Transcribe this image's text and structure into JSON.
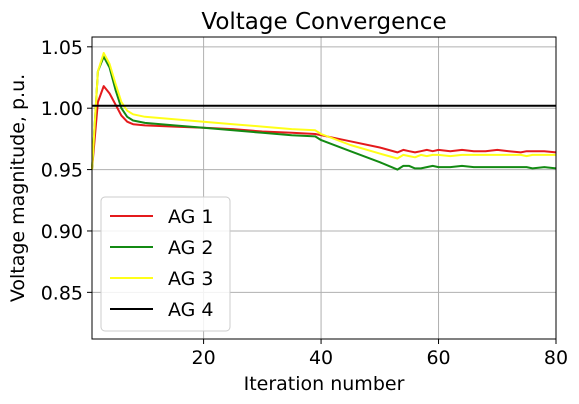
{
  "chart_data": {
    "type": "line",
    "title": "Voltage Convergence",
    "xlabel": "Iteration number",
    "ylabel": "Voltage magnitude, p.u.",
    "xlim": [
      1,
      80
    ],
    "ylim": [
      0.812,
      1.058
    ],
    "xticks": [
      20,
      40,
      60,
      80
    ],
    "yticks": [
      0.85,
      0.9,
      0.95,
      1.0,
      1.05
    ],
    "xtick_labels": [
      "20",
      "40",
      "60",
      "80"
    ],
    "ytick_labels": [
      "0.85",
      "0.90",
      "0.95",
      "1.00",
      "1.05"
    ],
    "grid": true,
    "legend_position": "lower-left",
    "series": [
      {
        "name": "AG 1",
        "color": "#e41a1c",
        "x": [
          1,
          2,
          3,
          4,
          5,
          6,
          7,
          8,
          10,
          15,
          20,
          25,
          30,
          35,
          39,
          40,
          45,
          50,
          53,
          54,
          55,
          56,
          57,
          58,
          59,
          60,
          62,
          64,
          66,
          68,
          70,
          72,
          74,
          75,
          76,
          78,
          80
        ],
        "y": [
          0.95,
          1.005,
          1.018,
          1.012,
          1.003,
          0.994,
          0.989,
          0.987,
          0.986,
          0.985,
          0.984,
          0.983,
          0.981,
          0.98,
          0.979,
          0.978,
          0.973,
          0.968,
          0.964,
          0.966,
          0.965,
          0.964,
          0.965,
          0.966,
          0.965,
          0.966,
          0.965,
          0.966,
          0.965,
          0.965,
          0.966,
          0.965,
          0.964,
          0.965,
          0.965,
          0.965,
          0.964
        ]
      },
      {
        "name": "AG 2",
        "color": "#138a13",
        "x": [
          1,
          2,
          3,
          4,
          5,
          6,
          7,
          8,
          10,
          15,
          20,
          25,
          30,
          35,
          39,
          40,
          45,
          50,
          52,
          53,
          54,
          55,
          56,
          57,
          58,
          59,
          60,
          62,
          64,
          66,
          68,
          70,
          72,
          74,
          75,
          76,
          78,
          80
        ],
        "y": [
          0.95,
          1.03,
          1.042,
          1.033,
          1.015,
          1.0,
          0.993,
          0.99,
          0.988,
          0.986,
          0.984,
          0.982,
          0.98,
          0.978,
          0.977,
          0.974,
          0.965,
          0.956,
          0.952,
          0.95,
          0.953,
          0.953,
          0.951,
          0.951,
          0.952,
          0.953,
          0.952,
          0.952,
          0.953,
          0.952,
          0.952,
          0.952,
          0.952,
          0.952,
          0.952,
          0.951,
          0.952,
          0.951
        ]
      },
      {
        "name": "AG 3",
        "color": "#ffff19",
        "x": [
          1,
          2,
          3,
          4,
          5,
          6,
          7,
          8,
          10,
          15,
          20,
          25,
          30,
          35,
          39,
          40,
          45,
          50,
          53,
          54,
          55,
          56,
          57,
          58,
          59,
          60,
          62,
          64,
          66,
          68,
          70,
          72,
          74,
          75,
          76,
          78,
          80
        ],
        "y": [
          0.95,
          1.03,
          1.045,
          1.036,
          1.02,
          1.005,
          0.998,
          0.995,
          0.993,
          0.991,
          0.989,
          0.987,
          0.985,
          0.983,
          0.982,
          0.979,
          0.97,
          0.963,
          0.959,
          0.962,
          0.961,
          0.96,
          0.962,
          0.961,
          0.962,
          0.962,
          0.961,
          0.962,
          0.962,
          0.962,
          0.962,
          0.962,
          0.962,
          0.961,
          0.962,
          0.962,
          0.962
        ]
      },
      {
        "name": "AG 4",
        "color": "#000000",
        "x": [
          1,
          80
        ],
        "y": [
          1.002,
          1.002
        ]
      }
    ]
  }
}
